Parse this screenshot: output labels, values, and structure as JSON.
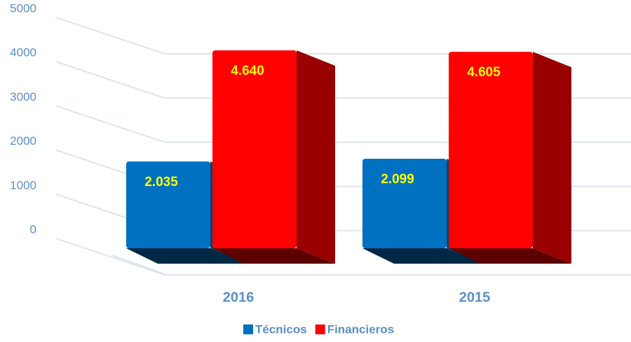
{
  "chart_data": {
    "type": "bar3d",
    "categories": [
      "2016",
      "2015"
    ],
    "series": [
      {
        "name": "Técnicos",
        "color": "#0070c0",
        "values": [
          2035,
          2099
        ],
        "value_labels": [
          "2.035",
          "2.099"
        ]
      },
      {
        "name": "Financieros",
        "color": "#ff0000",
        "values": [
          4640,
          4605
        ],
        "value_labels": [
          "4.640",
          "4.605"
        ]
      }
    ],
    "ylim": [
      0,
      5000
    ],
    "yticks": [
      0,
      1000,
      2000,
      3000,
      4000,
      5000
    ],
    "grid": true,
    "legend": "bottom"
  }
}
